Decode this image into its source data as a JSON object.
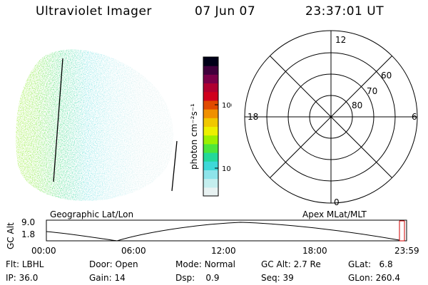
{
  "header": {
    "instrument": "Ultraviolet Imager",
    "date": "07 Jun 07",
    "time": "23:37:01 UT"
  },
  "colorbar": {
    "label": "photon cm⁻²s⁻¹",
    "ticks": [
      {
        "label": "100",
        "value": 100
      },
      {
        "label": "10",
        "value": 10
      }
    ],
    "colors": [
      "#e8f2f2",
      "#c4eeee",
      "#8ee4ea",
      "#3ed8d8",
      "#24d89a",
      "#4ce63c",
      "#9cf000",
      "#ecf000",
      "#f0c800",
      "#f09000",
      "#e04a00",
      "#d0001c",
      "#b00030",
      "#7a0048",
      "#40003c",
      "#000018"
    ]
  },
  "labels": {
    "left_plot": "Geographic Lat/Lon",
    "right_plot": "Apex MLat/MLT"
  },
  "polar": {
    "mlt_labels": [
      {
        "text": "12",
        "pos": "top"
      },
      {
        "text": "18",
        "pos": "left"
      },
      {
        "text": "6",
        "pos": "right"
      },
      {
        "text": "0",
        "pos": "bottom"
      }
    ],
    "lat_labels": [
      "60",
      "70",
      "80"
    ]
  },
  "timeline": {
    "ylabel": "GC Alt",
    "yticks": [
      "9.0",
      "1.8"
    ],
    "xticks": [
      "00:00",
      "06:00",
      "12:00",
      "18:00",
      "23:59"
    ]
  },
  "info": {
    "row1": [
      {
        "key": "Flt:",
        "value": "LBHL"
      },
      {
        "key": "Door:",
        "value": "Open"
      },
      {
        "key": "Mode:",
        "value": "Normal"
      },
      {
        "key": "GC Alt:",
        "value": "2.7 Re"
      },
      {
        "key": "GLat:",
        "value": "6.8"
      }
    ],
    "row2": [
      {
        "key": "IP:",
        "value": "36.0"
      },
      {
        "key": "Gain:",
        "value": "14"
      },
      {
        "key": "Dsp:",
        "value": "0.9"
      },
      {
        "key": "Seq:",
        "value": "39"
      },
      {
        "key": "GLon:",
        "value": "260.4"
      }
    ]
  }
}
